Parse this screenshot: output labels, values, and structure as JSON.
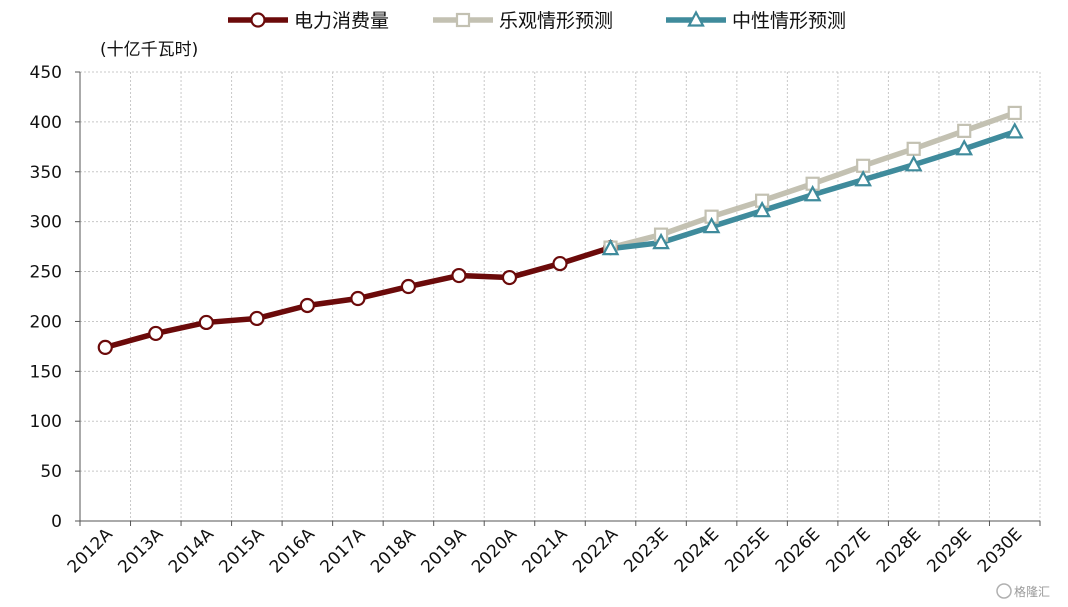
{
  "chart_data": {
    "type": "line",
    "unit_label": "(十亿千瓦时)",
    "categories": [
      "2012A",
      "2013A",
      "2014A",
      "2015A",
      "2016A",
      "2017A",
      "2018A",
      "2019A",
      "2020A",
      "2021A",
      "2022A",
      "2023E",
      "2024E",
      "2025E",
      "2026E",
      "2027E",
      "2028E",
      "2029E",
      "2030E"
    ],
    "ylim": [
      0,
      450
    ],
    "yticks": [
      0,
      50,
      100,
      150,
      200,
      250,
      300,
      350,
      400,
      450
    ],
    "grid": true,
    "legend_position": "top",
    "series": [
      {
        "name": "电力消费量",
        "color": "#6b0a0a",
        "marker": "circle",
        "values": [
          174,
          188,
          199,
          203,
          216,
          223,
          235,
          246,
          244,
          258,
          274,
          null,
          null,
          null,
          null,
          null,
          null,
          null,
          null
        ]
      },
      {
        "name": "乐观情形预测",
        "color": "#c3c1b2",
        "marker": "square",
        "values": [
          null,
          null,
          null,
          null,
          null,
          null,
          null,
          null,
          null,
          null,
          274,
          287,
          305,
          321,
          338,
          356,
          373,
          391,
          409
        ]
      },
      {
        "name": "中性情形预测",
        "color": "#3f8b9c",
        "marker": "triangle",
        "values": [
          null,
          null,
          null,
          null,
          null,
          null,
          null,
          null,
          null,
          null,
          273,
          279,
          295,
          311,
          327,
          342,
          357,
          373,
          390
        ]
      }
    ]
  },
  "watermark": "格隆汇"
}
